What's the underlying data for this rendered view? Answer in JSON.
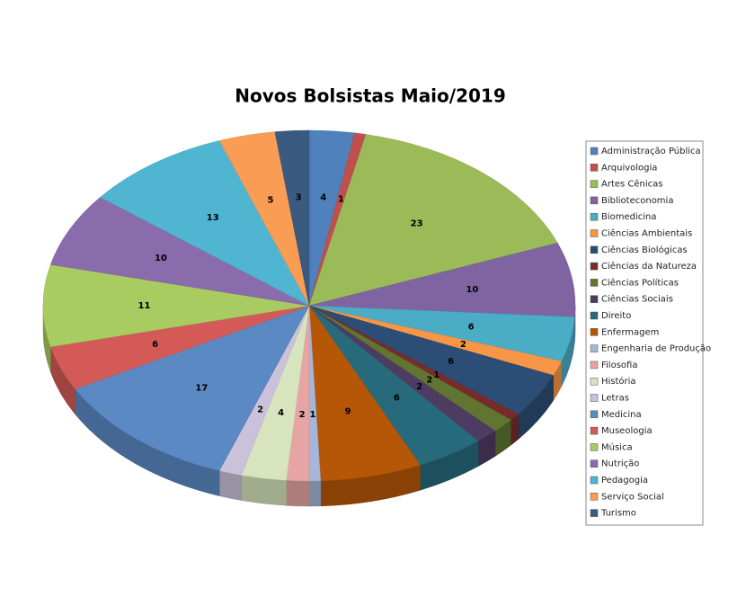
{
  "chart_data": {
    "type": "pie3d",
    "title": "Novos Bolsistas Maio/2019",
    "categories": [
      "Administração Pública",
      "Arquivologia",
      "Artes Cênicas",
      "Biblioteconomia",
      "Biomedicina",
      "Ciências Ambientais",
      "Ciências Biológicas",
      "Ciências da Natureza",
      "Ciências Políticas",
      "Ciências Sociais",
      "Direito",
      "Enfermagem",
      "Engenharia de Produção",
      "Filosofia",
      "História",
      "Letras",
      "Medicina",
      "Museologia",
      "Música",
      "Nutrição",
      "Pedagogia",
      "Serviço Social",
      "Turismo"
    ],
    "values": [
      4,
      1,
      23,
      10,
      6,
      2,
      6,
      1,
      2,
      2,
      6,
      9,
      1,
      2,
      4,
      2,
      17,
      6,
      11,
      10,
      13,
      5,
      3
    ],
    "colors": [
      "#4f81bd",
      "#c0504d",
      "#9bbb59",
      "#8064a2",
      "#4bacc6",
      "#f79646",
      "#2c4d75",
      "#772c2a",
      "#5f7530",
      "#4d3b62",
      "#276a7c",
      "#b65708",
      "#a5b6d9",
      "#e6a5a4",
      "#d7e4bd",
      "#ccc1da",
      "#5b89c4",
      "#d45a57",
      "#a8cc62",
      "#8a6cad",
      "#4fb5d0",
      "#f99d55",
      "#3a5a80"
    ],
    "legend": "right"
  }
}
